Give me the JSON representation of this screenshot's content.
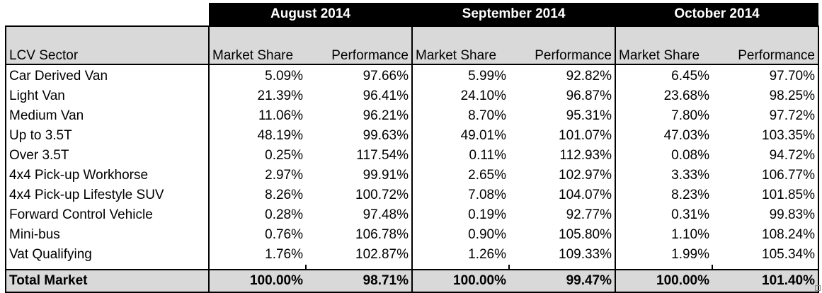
{
  "header": {
    "months": [
      "August 2014",
      "September 2014",
      "October 2014"
    ],
    "sector_label": "LCV Sector",
    "market_share_label": "Market Share",
    "performance_label": "Performance"
  },
  "rows": [
    {
      "sector": "Car Derived Van",
      "aug_share": "5.09%",
      "aug_perf": "97.66%",
      "sep_share": "5.99%",
      "sep_perf": "92.82%",
      "oct_share": "6.45%",
      "oct_perf": "97.70%"
    },
    {
      "sector": "Light Van",
      "aug_share": "21.39%",
      "aug_perf": "96.41%",
      "sep_share": "24.10%",
      "sep_perf": "96.87%",
      "oct_share": "23.68%",
      "oct_perf": "98.25%"
    },
    {
      "sector": "Medium Van",
      "aug_share": "11.06%",
      "aug_perf": "96.21%",
      "sep_share": "8.70%",
      "sep_perf": "95.31%",
      "oct_share": "7.80%",
      "oct_perf": "97.72%"
    },
    {
      "sector": "Up to 3.5T",
      "aug_share": "48.19%",
      "aug_perf": "99.63%",
      "sep_share": "49.01%",
      "sep_perf": "101.07%",
      "oct_share": "47.03%",
      "oct_perf": "103.35%"
    },
    {
      "sector": "Over 3.5T",
      "aug_share": "0.25%",
      "aug_perf": "117.54%",
      "sep_share": "0.11%",
      "sep_perf": "112.93%",
      "oct_share": "0.08%",
      "oct_perf": "94.72%"
    },
    {
      "sector": "4x4 Pick-up Workhorse",
      "aug_share": "2.97%",
      "aug_perf": "99.91%",
      "sep_share": "2.65%",
      "sep_perf": "102.97%",
      "oct_share": "3.33%",
      "oct_perf": "106.77%"
    },
    {
      "sector": "4x4 Pick-up Lifestyle SUV",
      "aug_share": "8.26%",
      "aug_perf": "100.72%",
      "sep_share": "7.08%",
      "sep_perf": "104.07%",
      "oct_share": "8.23%",
      "oct_perf": "101.85%"
    },
    {
      "sector": "Forward Control Vehicle",
      "aug_share": "0.28%",
      "aug_perf": "97.48%",
      "sep_share": "0.19%",
      "sep_perf": "92.77%",
      "oct_share": "0.31%",
      "oct_perf": "99.83%"
    },
    {
      "sector": "Mini-bus",
      "aug_share": "0.76%",
      "aug_perf": "106.78%",
      "sep_share": "0.90%",
      "sep_perf": "105.80%",
      "oct_share": "1.10%",
      "oct_perf": "108.24%"
    },
    {
      "sector": "Vat Qualifying",
      "aug_share": "1.76%",
      "aug_perf": "102.87%",
      "sep_share": "1.26%",
      "sep_perf": "109.33%",
      "oct_share": "1.99%",
      "oct_perf": "105.34%"
    }
  ],
  "total": {
    "sector": "Total Market",
    "aug_share": "100.00%",
    "aug_perf": "98.71%",
    "sep_share": "100.00%",
    "sep_perf": "99.47%",
    "oct_share": "100.00%",
    "oct_perf": "101.40%"
  }
}
